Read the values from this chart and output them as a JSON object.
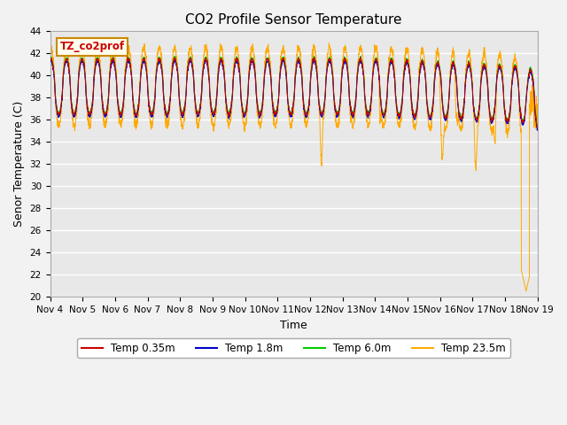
{
  "title": "CO2 Profile Sensor Temperature",
  "xlabel": "Time",
  "ylabel": "Senor Temperature (C)",
  "ylim": [
    20,
    44
  ],
  "yticks": [
    20,
    22,
    24,
    26,
    28,
    30,
    32,
    34,
    36,
    38,
    40,
    42,
    44
  ],
  "colors": {
    "temp_035": "#cc0000",
    "temp_18": "#0000cc",
    "temp_60": "#00cc00",
    "temp_235": "#ffaa00"
  },
  "legend_labels": [
    "Temp 0.35m",
    "Temp 1.8m",
    "Temp 6.0m",
    "Temp 23.5m"
  ],
  "annotation_text": "TZ_co2prof",
  "annotation_color": "#cc0000",
  "annotation_bg": "#ffffee",
  "bg_color": "#e8e8e8",
  "grid_color": "#ffffff",
  "xticklabels": [
    "Nov 4",
    "Nov 5",
    "Nov 6",
    "Nov 7",
    "Nov 8",
    "Nov 9",
    "Nov 10",
    "Nov 11",
    "Nov 12",
    "Nov 13",
    "Nov 14",
    "Nov 15",
    "Nov 16",
    "Nov 17",
    "Nov 18",
    "Nov 19"
  ]
}
